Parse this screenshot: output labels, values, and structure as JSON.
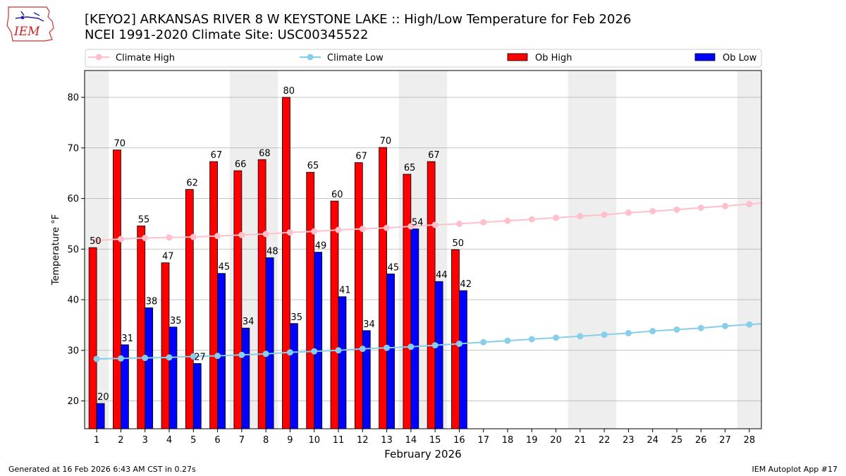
{
  "header": {
    "title_line1": "[KEYO2] ARKANSAS RIVER 8 W KEYSTONE LAKE :: High/Low Temperature for Feb 2026",
    "title_line2": "NCEI 1991-2020 Climate Site: USC00345522",
    "logo_text": "IEM"
  },
  "footer": {
    "left": "Generated at 16 Feb 2026 6:43 AM CST in 0.27s",
    "right": "IEM Autoplot App #17"
  },
  "colors": {
    "ob_high": "#ff0000",
    "ob_low": "#0000ff",
    "climate_high": "#ffc0cb",
    "climate_low": "#87ceeb",
    "weekend_shade": "#eeeeee",
    "grid": "#b0b0b0"
  },
  "chart_data": {
    "type": "bar",
    "xlabel": "February 2026",
    "ylabel": "Temperature °F",
    "ylim": [
      14.5,
      85.3
    ],
    "yticks": [
      20,
      30,
      40,
      50,
      60,
      70,
      80
    ],
    "grid": "horizontal",
    "legend_position": "top",
    "days": [
      1,
      2,
      3,
      4,
      5,
      6,
      7,
      8,
      9,
      10,
      11,
      12,
      13,
      14,
      15,
      16,
      17,
      18,
      19,
      20,
      21,
      22,
      23,
      24,
      25,
      26,
      27,
      28
    ],
    "weekend_days": [
      1,
      7,
      8,
      14,
      15,
      21,
      22,
      28
    ],
    "series": [
      {
        "name": "Climate High",
        "kind": "line",
        "values": [
          51.7,
          52.0,
          52.2,
          52.3,
          52.4,
          52.6,
          52.8,
          53.0,
          53.3,
          53.5,
          53.8,
          54.0,
          54.2,
          54.5,
          54.8,
          55.0,
          55.3,
          55.6,
          55.9,
          56.2,
          56.5,
          56.8,
          57.2,
          57.5,
          57.8,
          58.2,
          58.5,
          58.9
        ]
      },
      {
        "name": "Climate Low",
        "kind": "line",
        "values": [
          28.3,
          28.4,
          28.5,
          28.6,
          28.8,
          28.9,
          29.1,
          29.3,
          29.6,
          29.8,
          30.0,
          30.3,
          30.5,
          30.7,
          31.0,
          31.3,
          31.6,
          31.9,
          32.2,
          32.5,
          32.8,
          33.1,
          33.4,
          33.8,
          34.1,
          34.4,
          34.8,
          35.1
        ]
      },
      {
        "name": "Ob High",
        "kind": "bar",
        "values": [
          50.3,
          69.6,
          54.6,
          47.3,
          61.8,
          67.3,
          65.5,
          67.7,
          80.0,
          65.2,
          59.5,
          67.1,
          70.1,
          64.8,
          67.3,
          49.9
        ],
        "labels": [
          "50",
          "70",
          "55",
          "47",
          "62",
          "67",
          "66",
          "68",
          "80",
          "65",
          "60",
          "67",
          "70",
          "65",
          "67",
          "50"
        ]
      },
      {
        "name": "Ob Low",
        "kind": "bar",
        "values": [
          19.5,
          31.1,
          38.4,
          34.6,
          27.4,
          45.2,
          34.4,
          48.3,
          35.3,
          49.4,
          40.6,
          33.9,
          45.1,
          54.0,
          43.6,
          41.8
        ],
        "labels": [
          "20",
          "31",
          "38",
          "35",
          "27",
          "45",
          "34",
          "48",
          "35",
          "49",
          "41",
          "34",
          "45",
          "54",
          "44",
          "42"
        ]
      }
    ]
  }
}
